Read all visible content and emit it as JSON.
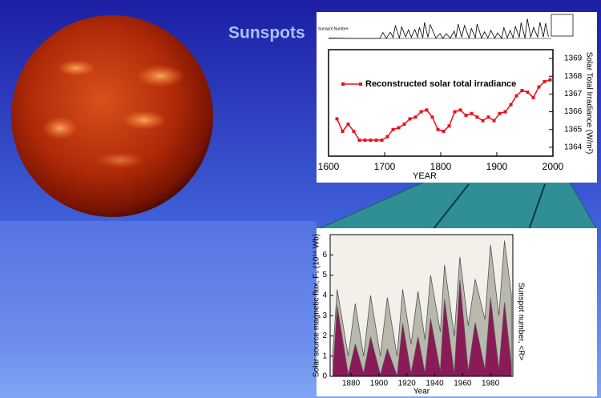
{
  "title": "Sunspots",
  "chart_data": [
    {
      "type": "line",
      "label": "Sunspot Number",
      "color": "#000000",
      "x": [
        1610,
        1650,
        1700,
        1705,
        1711,
        1718,
        1723,
        1727,
        1734,
        1738,
        1745,
        1750,
        1755,
        1761,
        1766,
        1769,
        1775,
        1778,
        1784,
        1788,
        1798,
        1805,
        1810,
        1816,
        1823,
        1830,
        1833,
        1837,
        1843,
        1848,
        1856,
        1860,
        1867,
        1870,
        1878,
        1883,
        1889,
        1894,
        1901,
        1906,
        1913,
        1917,
        1923,
        1928,
        1933,
        1937,
        1944,
        1947,
        1954,
        1958,
        1964,
        1969,
        1976,
        1980,
        1986,
        1990,
        1995
      ],
      "values": [
        5,
        0,
        0,
        58,
        0,
        60,
        11,
        122,
        5,
        111,
        14,
        83,
        10,
        86,
        12,
        106,
        7,
        154,
        10,
        131,
        4,
        48,
        0,
        46,
        2,
        71,
        8,
        138,
        11,
        124,
        4,
        96,
        7,
        139,
        3,
        64,
        6,
        78,
        3,
        54,
        1,
        104,
        6,
        78,
        6,
        114,
        10,
        152,
        4,
        190,
        10,
        106,
        13,
        155,
        13,
        146,
        18
      ],
      "xlim": [
        1610,
        2000
      ],
      "ylim": [
        0,
        200
      ]
    },
    {
      "type": "line",
      "series": [
        {
          "name": "Reconstructed solar total irradiance",
          "color": "#e8101a",
          "values": [
            1365.6,
            1364.9,
            1365.3,
            1364.9,
            1364.4,
            1364.4,
            1364.4,
            1364.4,
            1364.4,
            1364.6,
            1365.0,
            1365.1,
            1365.3,
            1365.6,
            1365.7,
            1366.0,
            1366.1,
            1365.7,
            1365.0,
            1364.9,
            1365.2,
            1366.0,
            1366.1,
            1365.8,
            1365.9,
            1365.7,
            1365.5,
            1365.7,
            1365.5,
            1365.9,
            1366.0,
            1366.4,
            1366.9,
            1367.2,
            1367.1,
            1366.8,
            1367.4,
            1367.7,
            1367.8
          ]
        }
      ],
      "x": [
        1615,
        1625,
        1635,
        1645,
        1655,
        1665,
        1675,
        1685,
        1695,
        1705,
        1715,
        1725,
        1735,
        1745,
        1755,
        1765,
        1775,
        1785,
        1795,
        1805,
        1815,
        1825,
        1835,
        1845,
        1855,
        1865,
        1875,
        1885,
        1895,
        1905,
        1915,
        1925,
        1935,
        1945,
        1955,
        1965,
        1975,
        1985,
        1995
      ],
      "xlim": [
        1600,
        2000
      ],
      "xticks": [
        1600,
        1700,
        1800,
        1900,
        2000
      ],
      "xlabel": "YEAR",
      "ylim": [
        1363.5,
        1369.5
      ],
      "yticks": [
        1364,
        1365,
        1366,
        1367,
        1368,
        1369
      ],
      "yaxis": "right",
      "ylabel": "Solar Total Irradiance (W/m²)"
    },
    {
      "type": "area",
      "x": [
        1867,
        1870,
        1878,
        1883,
        1889,
        1894,
        1901,
        1906,
        1913,
        1917,
        1923,
        1928,
        1933,
        1937,
        1944,
        1947,
        1954,
        1958,
        1964,
        1969,
        1976,
        1980,
        1986,
        1990,
        1995
      ],
      "series": [
        {
          "color": "#b9b8ad",
          "values": [
            1.2,
            4.3,
            1.0,
            3.6,
            1.0,
            4.0,
            1.0,
            3.9,
            1.0,
            4.3,
            1.6,
            4.2,
            1.8,
            5.0,
            2.2,
            5.5,
            2.0,
            5.9,
            2.5,
            4.8,
            2.8,
            6.5,
            3.0,
            6.7,
            4.0
          ]
        },
        {
          "color": "#8a1a58",
          "axis": "y2",
          "values": [
            7,
            139,
            3,
            64,
            6,
            78,
            3,
            54,
            1,
            104,
            6,
            78,
            6,
            114,
            10,
            152,
            4,
            190,
            10,
            106,
            13,
            155,
            13,
            146,
            18
          ]
        }
      ],
      "xlim": [
        1865,
        1996
      ],
      "xticks": [
        1880,
        1900,
        1920,
        1940,
        1960,
        1980
      ],
      "xlabel": "Year",
      "ylim": [
        0,
        7
      ],
      "yticks": [
        0,
        1,
        2,
        3,
        4,
        5,
        6
      ],
      "ylabel": "Solar source magnetic flux, Fₛ (10¹⁴ Wb)",
      "y2lim": [
        0,
        280
      ],
      "y2label": "Sunspot number, <R>"
    }
  ]
}
